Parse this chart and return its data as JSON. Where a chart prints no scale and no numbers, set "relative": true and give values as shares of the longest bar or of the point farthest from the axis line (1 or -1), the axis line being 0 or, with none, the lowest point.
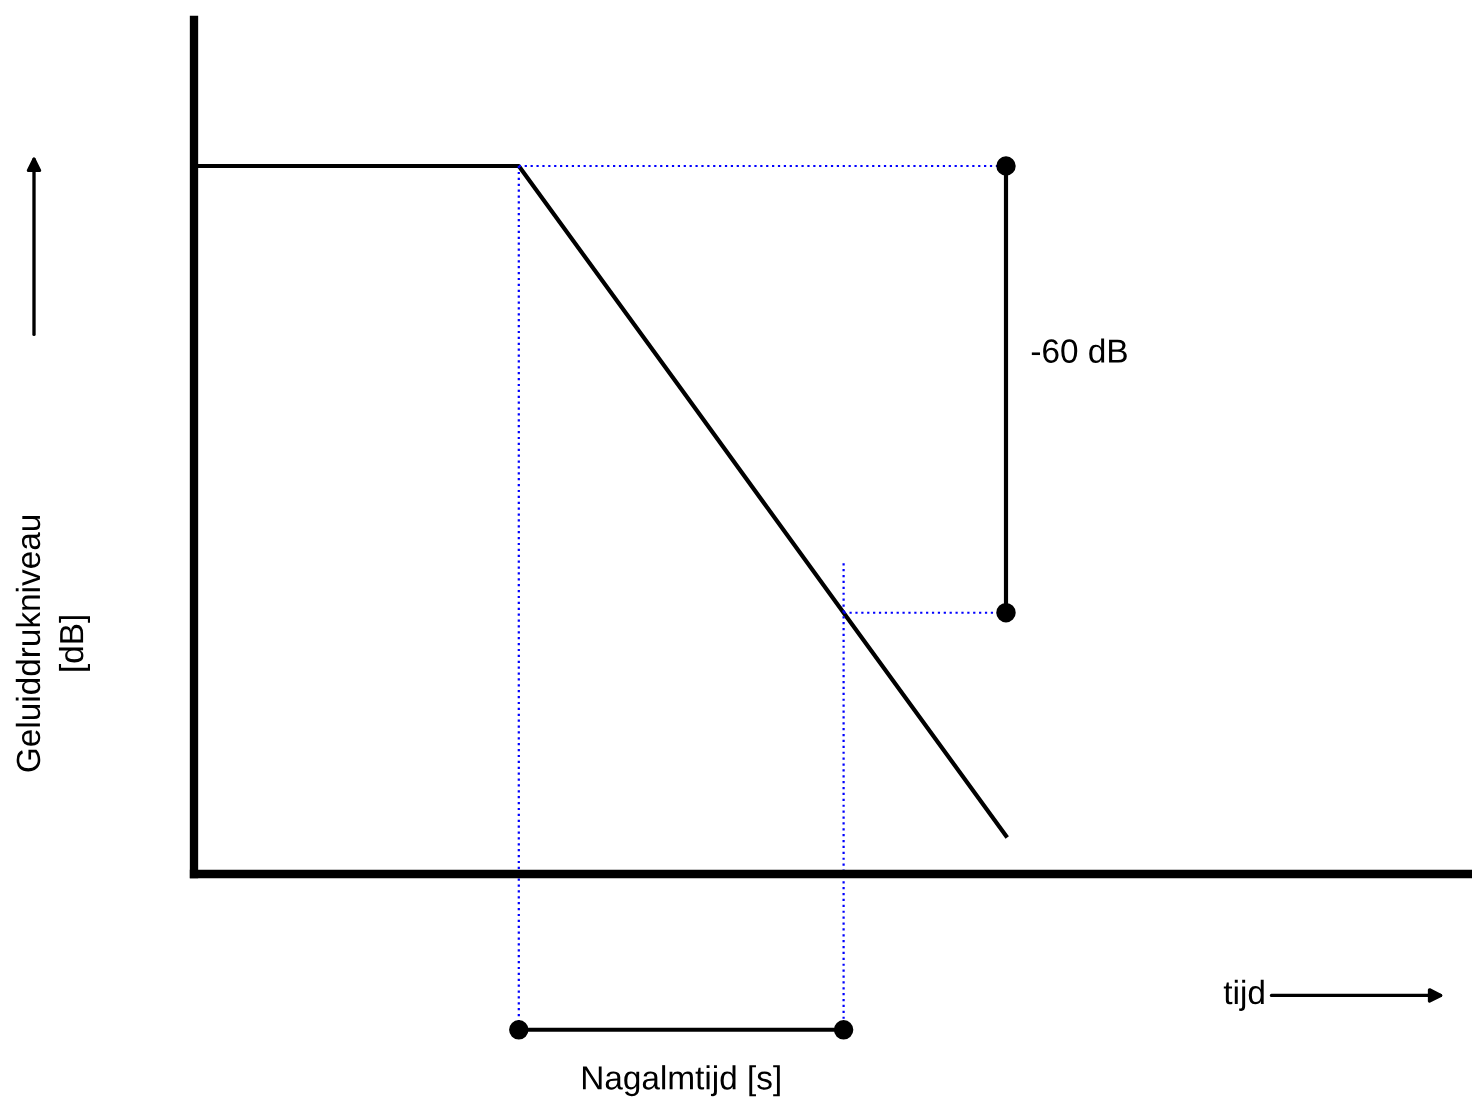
{
  "chart_data": {
    "type": "line",
    "relative": true,
    "ylabel": "Geluiddrukniveau\n[dB]",
    "categories": [
      null,
      null,
      null,
      null,
      null,
      null
    ],
    "series": [
      {
        "color": "#000000",
        "values": [
          1,
          1,
          1,
          0.685,
          0.369,
          0.054
        ]
      }
    ],
    "annotations": [
      "-60 dB",
      "Nagalmtijd [s]",
      "tijd"
    ],
    "tick_labels": false,
    "legend": false,
    "marker": "none",
    "line_style": "solid"
  }
}
